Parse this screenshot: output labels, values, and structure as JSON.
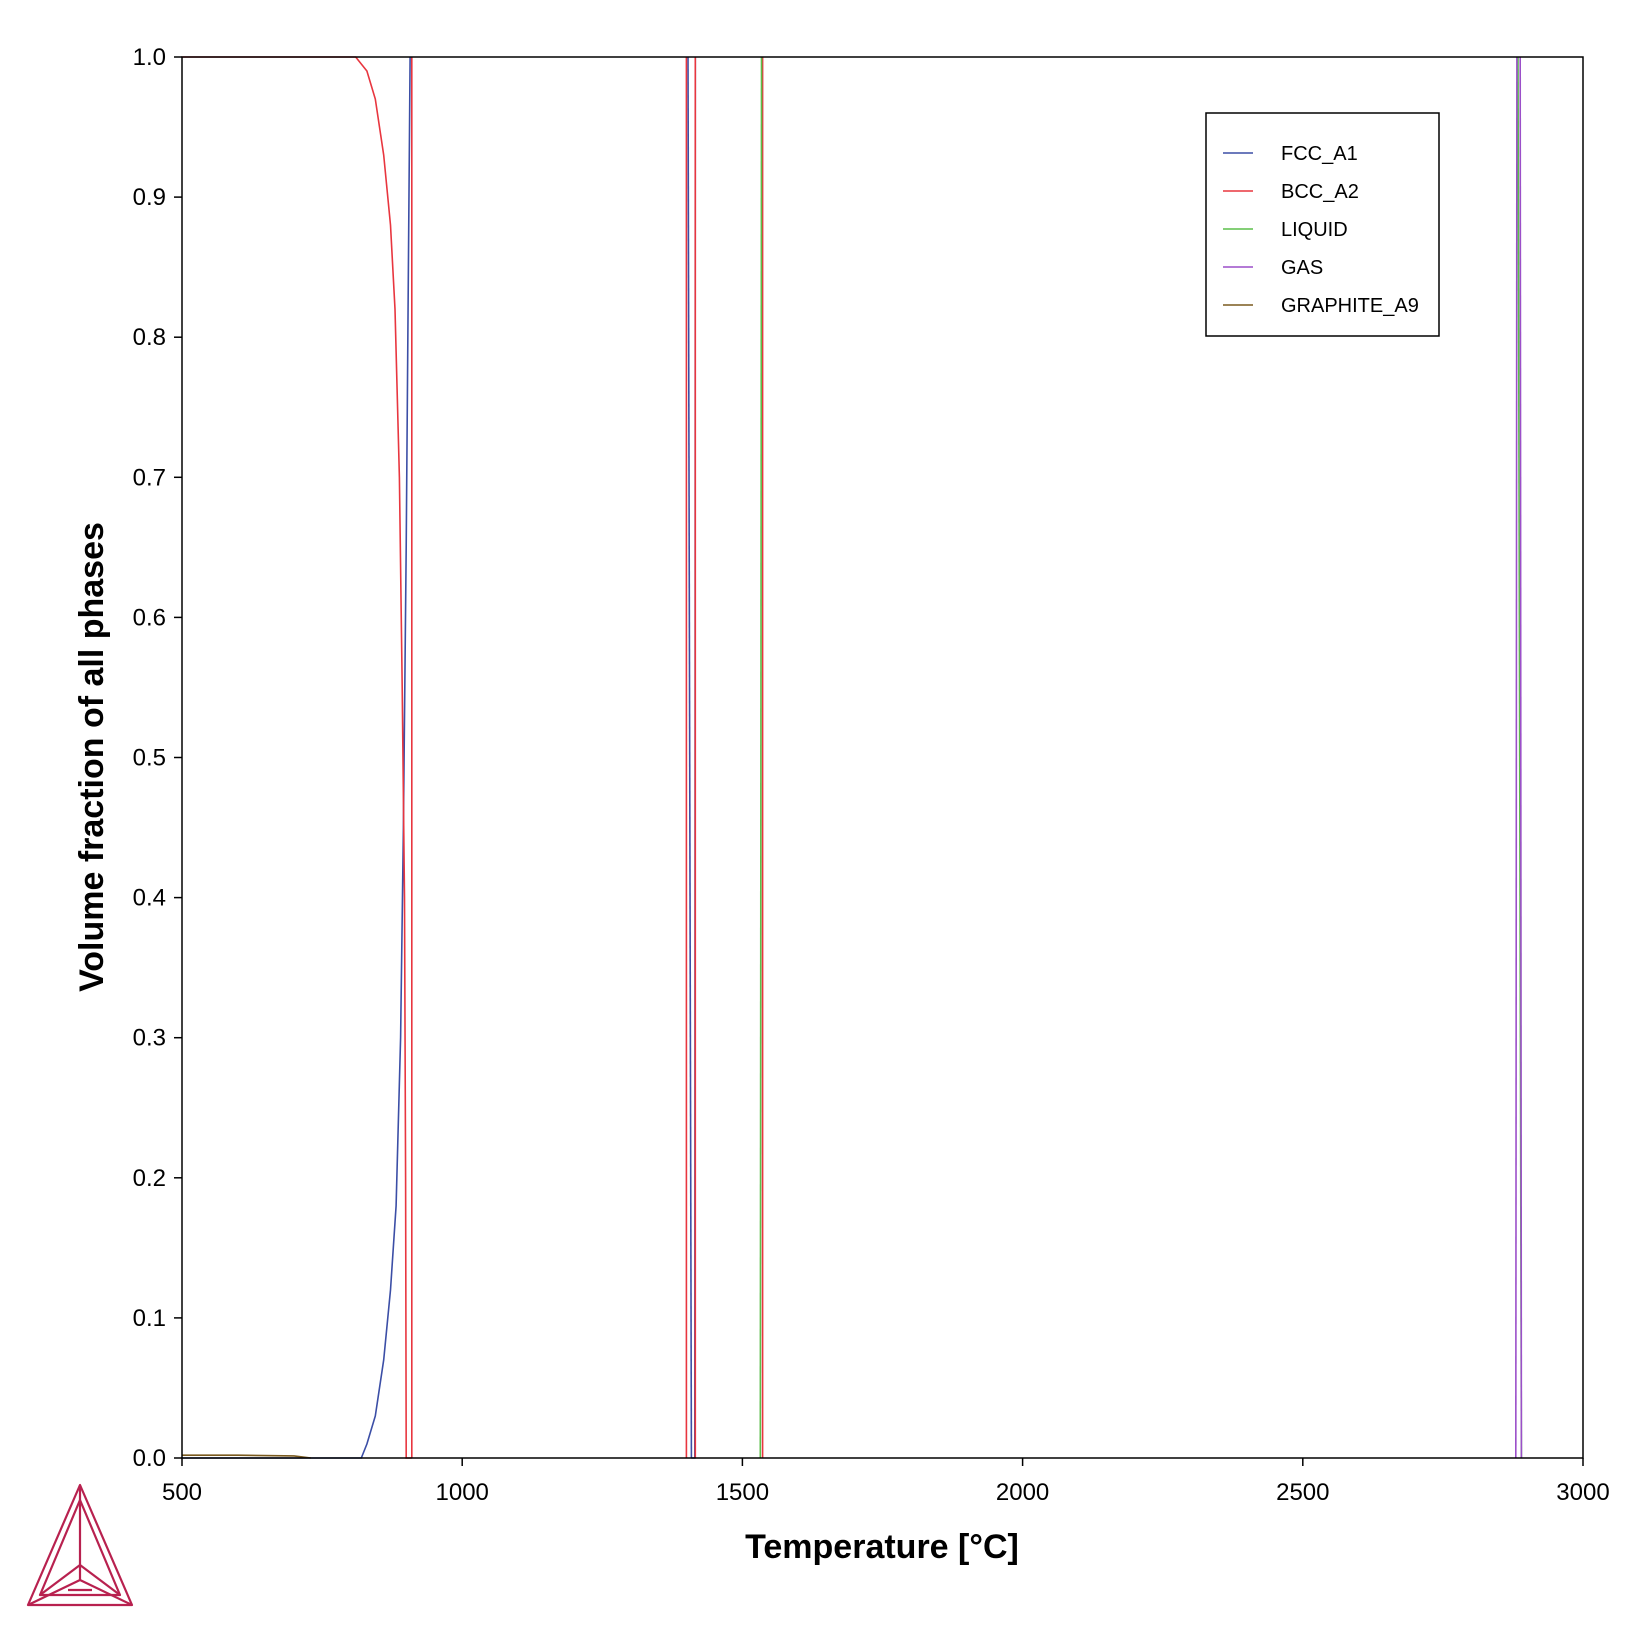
{
  "chart_data": {
    "type": "line",
    "title": "",
    "xlabel": "Temperature [°C]",
    "ylabel": "Volume fraction of all phases",
    "xlim": [
      500,
      3000
    ],
    "ylim": [
      0,
      1
    ],
    "xticks": [
      "500",
      "1000",
      "1500",
      "2000",
      "2500",
      "3000"
    ],
    "yticks": [
      "0.0",
      "0.1",
      "0.2",
      "0.3",
      "0.4",
      "0.5",
      "0.6",
      "0.7",
      "0.8",
      "0.9",
      "1.0"
    ],
    "grid": false,
    "legend_position": "top-right",
    "series": [
      {
        "name": "FCC_A1",
        "color": "#3b4ea6",
        "points": [
          [
            500,
            0
          ],
          [
            820,
            0
          ],
          [
            830,
            0.01
          ],
          [
            845,
            0.03
          ],
          [
            860,
            0.07
          ],
          [
            872,
            0.12
          ],
          [
            882,
            0.18
          ],
          [
            890,
            0.3
          ],
          [
            895,
            0.45
          ],
          [
            900,
            0.65
          ],
          [
            904,
            0.85
          ],
          [
            907,
            1.0
          ]
        ],
        "segments": [
          [
            [
              1403,
              1.0
            ],
            [
              1406,
              0.5
            ],
            [
              1409,
              0.0
            ]
          ],
          [
            [
              1409,
              0.0
            ],
            [
              1415,
              0.0
            ],
            [
              1416,
              1.0
            ]
          ]
        ]
      },
      {
        "name": "BCC_A2",
        "color": "#e8363f",
        "points": [
          [
            500,
            1.0
          ],
          [
            810,
            1.0
          ],
          [
            830,
            0.99
          ],
          [
            845,
            0.97
          ],
          [
            860,
            0.93
          ],
          [
            872,
            0.88
          ],
          [
            880,
            0.82
          ],
          [
            888,
            0.7
          ],
          [
            893,
            0.55
          ],
          [
            897,
            0.4
          ],
          [
            899,
            0.2
          ],
          [
            900,
            0.0
          ],
          [
            910,
            0.0
          ]
        ],
        "segments": [
          [
            [
              910,
              0.0
            ],
            [
              910,
              1.0
            ]
          ],
          [
            [
              1400,
              0.0
            ],
            [
              1400,
              1.0
            ]
          ],
          [
            [
              1416,
              1.0
            ],
            [
              1416,
              0.0
            ]
          ],
          [
            [
              1536,
              0.0
            ],
            [
              1536,
              1.0
            ]
          ]
        ]
      },
      {
        "name": "LIQUID",
        "color": "#5bbf4a",
        "points": [
          [
            1532,
            0.0
          ],
          [
            1534,
            1.0
          ]
        ],
        "segments": [
          [
            [
              2884,
              1.0
            ],
            [
              2890,
              0.0
            ]
          ]
        ]
      },
      {
        "name": "GAS",
        "color": "#9b4fc9",
        "points": [
          [
            2880,
            0.0
          ],
          [
            2882,
            1.0
          ]
        ],
        "segments": [
          [
            [
              2888,
              1.0
            ],
            [
              2890,
              0.0
            ]
          ]
        ]
      },
      {
        "name": "GRAPHITE_A9",
        "color": "#7a5a1e",
        "points": [
          [
            500,
            0.002
          ],
          [
            600,
            0.002
          ],
          [
            700,
            0.0015
          ],
          [
            730,
            0.0
          ]
        ],
        "segments": []
      }
    ]
  },
  "logo": {
    "icon": "thermo-calc-logo-icon",
    "color": "#b8214f"
  }
}
